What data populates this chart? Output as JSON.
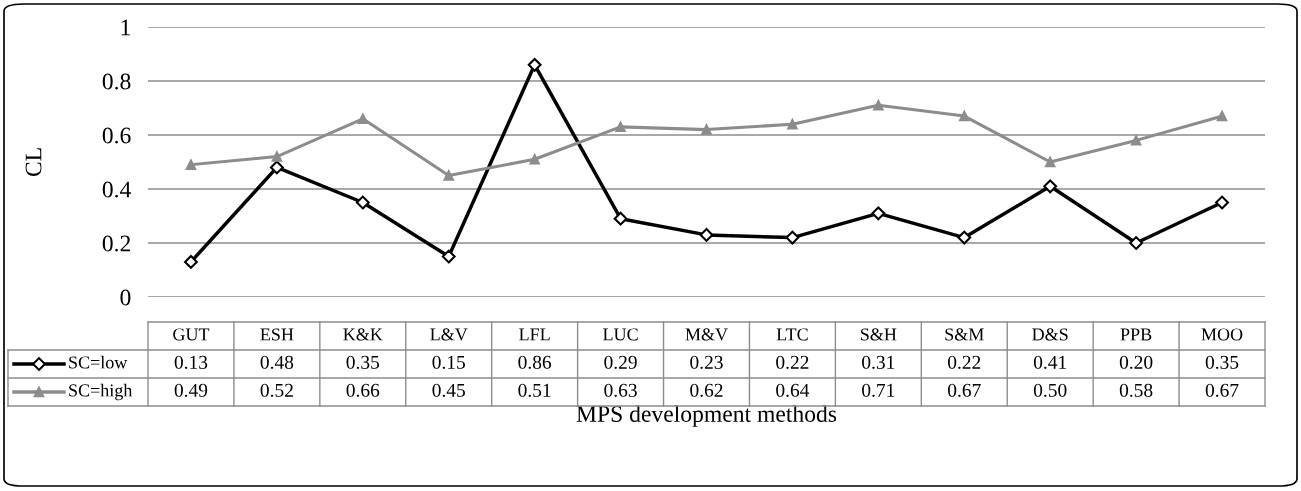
{
  "chart_data": {
    "type": "line",
    "xlabel": "MPS development methods",
    "ylabel": "CL",
    "categories": [
      "GUT",
      "ESH",
      "K&K",
      "L&V",
      "LFL",
      "LUC",
      "M&V",
      "LTC",
      "S&H",
      "S&M",
      "D&S",
      "PPB",
      "MOO"
    ],
    "series": [
      {
        "name": "SC=low",
        "color": "#000000",
        "marker": "diamond",
        "values": [
          0.13,
          0.48,
          0.35,
          0.15,
          0.86,
          0.29,
          0.23,
          0.22,
          0.31,
          0.22,
          0.41,
          0.2,
          0.35
        ],
        "value_labels": [
          "0.13",
          "0.48",
          "0.35",
          "0.15",
          "0.86",
          "0.29",
          "0.23",
          "0.22",
          "0.31",
          "0.22",
          "0.41",
          "0.20",
          "0.35"
        ]
      },
      {
        "name": "SC=high",
        "color": "#8c8c8c",
        "marker": "triangle",
        "values": [
          0.49,
          0.52,
          0.66,
          0.45,
          0.51,
          0.63,
          0.62,
          0.64,
          0.71,
          0.67,
          0.5,
          0.58,
          0.67
        ],
        "value_labels": [
          "0.49",
          "0.52",
          "0.66",
          "0.45",
          "0.51",
          "0.63",
          "0.62",
          "0.64",
          "0.71",
          "0.67",
          "0.50",
          "0.58",
          "0.67"
        ]
      }
    ],
    "ylim": [
      0,
      1
    ],
    "yticks": [
      0,
      0.2,
      0.4,
      0.6,
      0.8,
      1
    ],
    "grid": "y",
    "legend": "bottom left"
  }
}
